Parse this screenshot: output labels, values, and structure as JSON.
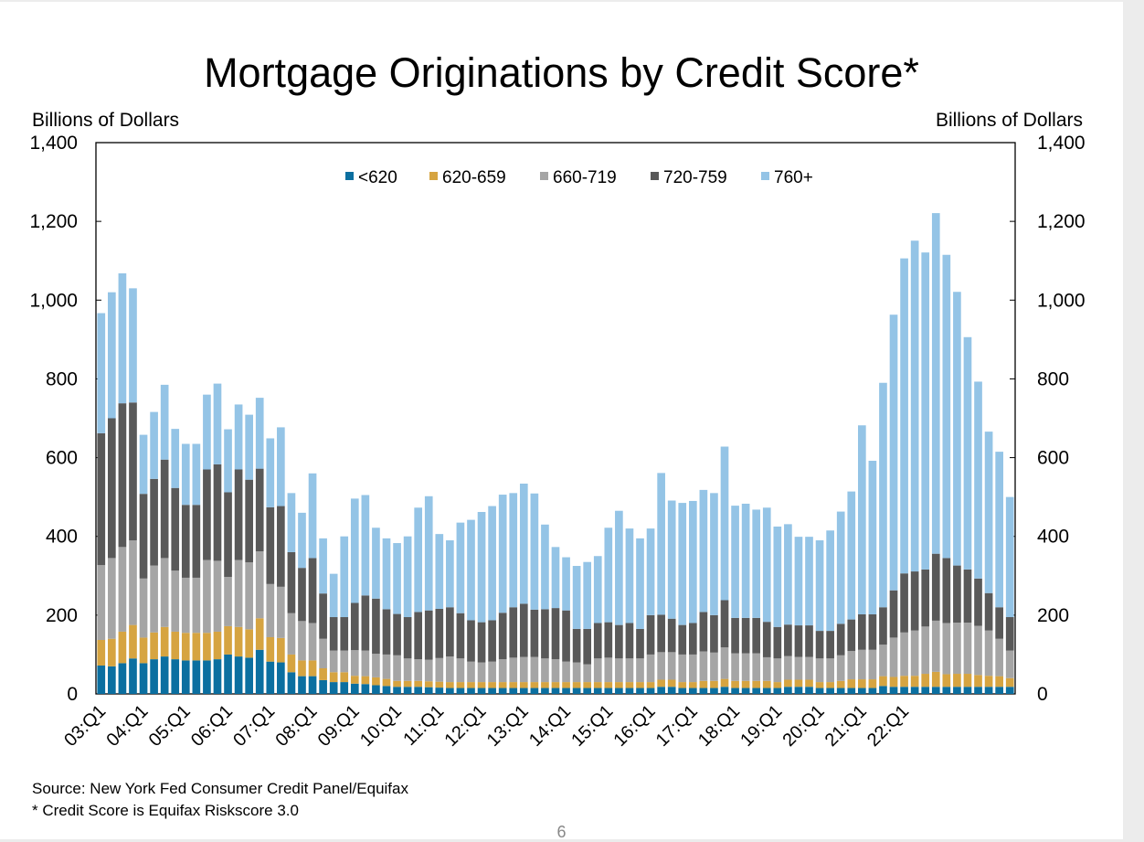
{
  "page": {
    "number": "6"
  },
  "footer": {
    "source": "Source: New York Fed Consumer Credit Panel/Equifax",
    "note": "* Credit Score is Equifax Riskscore 3.0"
  },
  "chart_data": {
    "type": "bar",
    "stacked": true,
    "title": "Mortgage Originations by Credit Score*",
    "ylabel_left": "Billions of Dollars",
    "ylabel_right": "Billions of Dollars",
    "ylim": [
      0,
      1400
    ],
    "yticks": [
      "0",
      "200",
      "400",
      "600",
      "800",
      "1,000",
      "1,200",
      "1,400"
    ],
    "ytick_values": [
      0,
      200,
      400,
      600,
      800,
      1000,
      1200,
      1400
    ],
    "xtick_labels": [
      "03:Q1",
      "04:Q1",
      "05:Q1",
      "06:Q1",
      "07:Q1",
      "08:Q1",
      "09:Q1",
      "10:Q1",
      "11:Q1",
      "12:Q1",
      "13:Q1",
      "14:Q1",
      "15:Q1",
      "16:Q1",
      "17:Q1",
      "18:Q1",
      "19:Q1",
      "20:Q1",
      "21:Q1",
      "22:Q1"
    ],
    "quarters_per_tick": 4,
    "legend_position": "top-center",
    "grid": false,
    "series": [
      {
        "name": "<620",
        "color": "#0b6fa0",
        "values": [
          72,
          70,
          78,
          90,
          78,
          88,
          95,
          88,
          85,
          85,
          85,
          88,
          100,
          95,
          92,
          112,
          82,
          80,
          55,
          45,
          45,
          35,
          30,
          30,
          26,
          25,
          22,
          20,
          18,
          18,
          18,
          17,
          16,
          15,
          15,
          15,
          15,
          15,
          15,
          15,
          15,
          15,
          15,
          15,
          15,
          15,
          15,
          15,
          15,
          15,
          15,
          15,
          15,
          18,
          18,
          15,
          15,
          15,
          15,
          18,
          15,
          15,
          15,
          15,
          15,
          18,
          18,
          18,
          15,
          15,
          15,
          15,
          15,
          15,
          20,
          18,
          18,
          18,
          18,
          18,
          18,
          18,
          18,
          18,
          18,
          18,
          18
        ]
      },
      {
        "name": "620-659",
        "color": "#d6a441",
        "values": [
          65,
          70,
          80,
          85,
          65,
          68,
          75,
          70,
          70,
          70,
          70,
          70,
          72,
          75,
          72,
          80,
          62,
          62,
          45,
          40,
          40,
          30,
          25,
          25,
          20,
          20,
          20,
          18,
          15,
          15,
          15,
          15,
          15,
          15,
          15,
          15,
          15,
          15,
          15,
          15,
          15,
          15,
          15,
          15,
          15,
          15,
          15,
          15,
          15,
          15,
          15,
          15,
          15,
          18,
          18,
          15,
          15,
          18,
          18,
          20,
          18,
          18,
          18,
          18,
          15,
          18,
          18,
          18,
          15,
          15,
          18,
          22,
          22,
          22,
          25,
          25,
          28,
          28,
          33,
          38,
          32,
          33,
          33,
          30,
          28,
          27,
          22
        ]
      },
      {
        "name": "660-719",
        "color": "#a5a5a5",
        "values": [
          190,
          205,
          215,
          215,
          150,
          170,
          175,
          155,
          140,
          140,
          185,
          180,
          125,
          170,
          170,
          170,
          135,
          130,
          105,
          100,
          95,
          75,
          55,
          55,
          65,
          65,
          60,
          62,
          65,
          57,
          55,
          55,
          60,
          65,
          60,
          52,
          50,
          52,
          58,
          62,
          64,
          64,
          60,
          58,
          52,
          50,
          45,
          60,
          62,
          60,
          60,
          60,
          70,
          70,
          70,
          70,
          70,
          75,
          72,
          80,
          70,
          70,
          70,
          60,
          60,
          60,
          58,
          58,
          60,
          60,
          65,
          72,
          75,
          75,
          80,
          100,
          110,
          115,
          120,
          130,
          130,
          130,
          130,
          125,
          115,
          95,
          70
        ]
      },
      {
        "name": "720-759",
        "color": "#595959",
        "values": [
          335,
          355,
          365,
          350,
          215,
          220,
          250,
          210,
          185,
          185,
          230,
          245,
          215,
          230,
          210,
          210,
          195,
          205,
          155,
          135,
          165,
          115,
          85,
          85,
          120,
          140,
          140,
          115,
          105,
          105,
          120,
          125,
          125,
          125,
          115,
          105,
          102,
          105,
          118,
          128,
          135,
          120,
          125,
          130,
          130,
          85,
          90,
          90,
          90,
          85,
          90,
          75,
          100,
          95,
          85,
          75,
          80,
          100,
          95,
          120,
          90,
          90,
          90,
          90,
          80,
          80,
          80,
          80,
          70,
          70,
          80,
          80,
          90,
          90,
          95,
          120,
          150,
          150,
          145,
          170,
          165,
          145,
          135,
          120,
          95,
          80,
          85
        ]
      },
      {
        "name": "760+",
        "color": "#94c4e6",
        "values": [
          305,
          320,
          330,
          290,
          150,
          170,
          190,
          150,
          155,
          155,
          190,
          205,
          160,
          165,
          165,
          180,
          175,
          200,
          150,
          140,
          215,
          140,
          110,
          205,
          265,
          255,
          180,
          180,
          180,
          205,
          265,
          290,
          190,
          170,
          230,
          255,
          280,
          290,
          300,
          290,
          305,
          295,
          215,
          155,
          135,
          160,
          170,
          170,
          240,
          290,
          240,
          230,
          220,
          360,
          300,
          310,
          310,
          310,
          310,
          390,
          285,
          290,
          275,
          290,
          255,
          255,
          225,
          225,
          230,
          255,
          285,
          325,
          480,
          390,
          570,
          700,
          800,
          840,
          805,
          865,
          770,
          695,
          590,
          500,
          410,
          395,
          305
        ]
      }
    ]
  }
}
